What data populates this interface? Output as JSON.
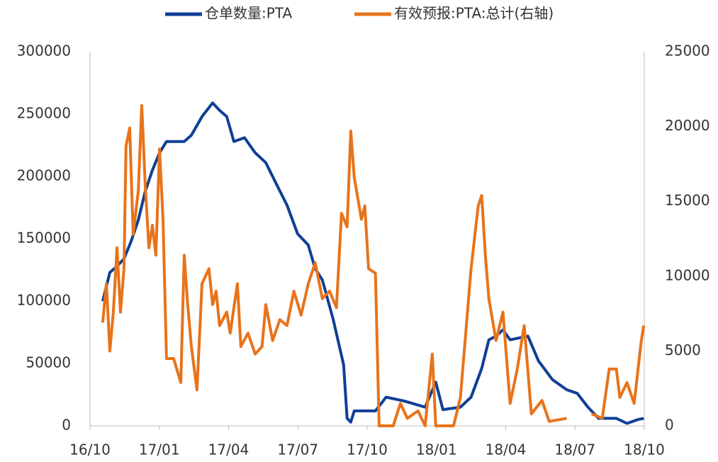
{
  "chart_data": {
    "type": "line",
    "xlim": [
      0,
      24
    ],
    "xticks": [
      {
        "value": 0,
        "label": "16/10"
      },
      {
        "value": 3,
        "label": "17/01"
      },
      {
        "value": 6,
        "label": "17/04"
      },
      {
        "value": 9,
        "label": "17/07"
      },
      {
        "value": 12,
        "label": "17/10"
      },
      {
        "value": 15,
        "label": "18/01"
      },
      {
        "value": 18,
        "label": "18/04"
      },
      {
        "value": 21,
        "label": "18/07"
      },
      {
        "value": 24,
        "label": "18/10"
      }
    ],
    "ylim": [
      0,
      300000
    ],
    "yticks": [
      0,
      50000,
      100000,
      150000,
      200000,
      250000,
      300000
    ],
    "y2lim": [
      0,
      25000
    ],
    "y2ticks": [
      0,
      5000,
      10000,
      15000,
      20000,
      25000
    ],
    "legend": "top",
    "series": [
      {
        "name": "仓单数量:PTA",
        "color": "#0f3f96",
        "x": [
          0.55,
          0.86,
          1.17,
          1.47,
          1.78,
          2.09,
          2.39,
          2.7,
          3.01,
          3.31,
          4.08,
          4.39,
          4.85,
          5.31,
          5.61,
          5.92,
          6.23,
          6.69,
          7.15,
          7.61,
          8.07,
          8.53,
          8.99,
          9.45,
          9.75,
          10.06,
          10.52,
          10.98,
          11.13,
          11.29,
          11.44,
          12.36,
          12.82,
          13.59,
          14.51,
          14.97,
          15.28,
          16.04,
          16.5,
          16.96,
          17.27,
          17.58,
          17.88,
          18.19,
          18.96,
          19.42,
          20.03,
          20.64,
          21.1,
          21.56,
          22.02,
          22.79,
          23.25,
          23.71,
          23.98
        ],
        "values": [
          100000,
          123000,
          128000,
          134000,
          148000,
          165000,
          188000,
          205000,
          219000,
          228000,
          228000,
          233000,
          248000,
          259000,
          253000,
          248000,
          228000,
          231000,
          219000,
          211000,
          194000,
          177000,
          154000,
          145000,
          126000,
          117000,
          86000,
          49000,
          6000,
          3000,
          12000,
          12000,
          23000,
          20000,
          15000,
          35000,
          13000,
          15000,
          23000,
          46000,
          69000,
          72000,
          77000,
          69000,
          72000,
          52000,
          37000,
          29000,
          26000,
          15000,
          6000,
          6000,
          2000,
          5000,
          6000
        ]
      },
      {
        "name": "有效预报:PTA:总计(右轴)",
        "color": "#e8731a",
        "axis": "y2",
        "x": [
          0.55,
          0.71,
          0.86,
          1.01,
          1.17,
          1.32,
          1.47,
          1.56,
          1.72,
          1.87,
          2.09,
          2.24,
          2.39,
          2.55,
          2.7,
          2.85,
          3.01,
          3.16,
          3.31,
          3.62,
          3.93,
          4.08,
          4.23,
          4.39,
          4.63,
          4.85,
          5.15,
          5.31,
          5.46,
          5.61,
          5.92,
          6.07,
          6.38,
          6.53,
          6.84,
          7.15,
          7.45,
          7.61,
          7.91,
          8.22,
          8.53,
          8.83,
          9.14,
          9.45,
          9.75,
          10.06,
          10.37,
          10.67,
          10.89,
          11.13,
          11.29,
          11.44,
          11.75,
          11.9,
          12.06,
          12.36,
          12.52,
          13.13,
          13.44,
          13.74,
          14.2,
          14.51,
          14.82,
          14.97,
          15.74,
          16.04,
          16.5,
          16.81,
          16.96,
          17.12,
          17.27,
          17.58,
          17.88,
          18.19,
          18.5,
          18.8,
          19.11,
          19.57,
          19.88,
          20.64,
          21.1,
          21.72,
          22.18,
          22.48,
          22.79,
          22.94,
          23.25,
          23.56,
          23.87,
          23.98
        ],
        "values": [
          6900,
          9500,
          5000,
          7600,
          11900,
          7600,
          10500,
          18700,
          19900,
          12800,
          15700,
          21400,
          16100,
          11900,
          13400,
          11400,
          18500,
          13800,
          4500,
          4500,
          2900,
          11400,
          8100,
          5300,
          2400,
          9500,
          10500,
          8100,
          9000,
          6700,
          7600,
          6200,
          9500,
          5300,
          6200,
          4800,
          5300,
          8100,
          5700,
          7100,
          6700,
          9000,
          7400,
          9500,
          10900,
          8500,
          9000,
          7900,
          14200,
          13300,
          19700,
          16600,
          13800,
          14700,
          10500,
          10200,
          0,
          0,
          1500,
          500,
          1000,
          0,
          4800,
          0,
          0,
          1900,
          10500,
          14700,
          15400,
          11400,
          8500,
          5700,
          7600,
          1500,
          3800,
          6700,
          800,
          1700,
          300,
          500,
          null,
          800,
          500,
          3800,
          3800,
          1900,
          2900,
          1500,
          5700,
          6700
        ]
      }
    ]
  }
}
